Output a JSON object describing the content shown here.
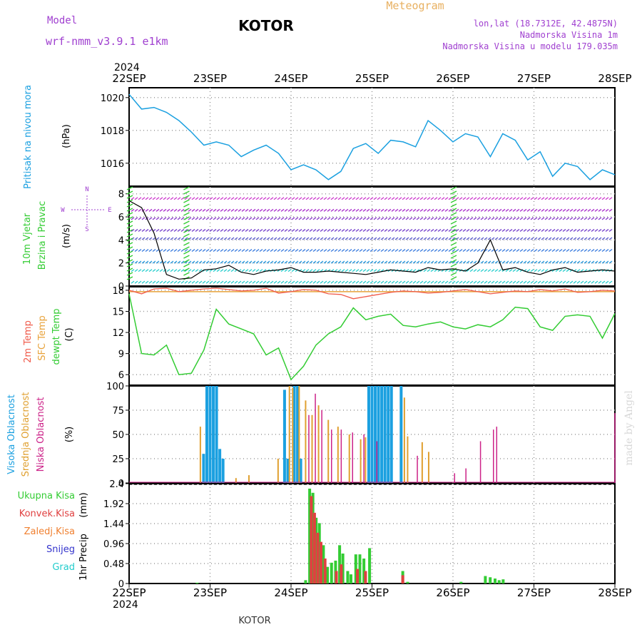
{
  "header": {
    "model_label": "Model",
    "model_name": "wrf-nmm_v3.9.1 e1km",
    "station": "KOTOR",
    "product": "Meteogram",
    "lonlat": "lon,lat (18.7312E, 42.4875N)",
    "elevation": "Nadmorska Visina 1m",
    "model_elevation": "Nadmorska Visina u modelu 179.035m",
    "footer_station": "KOTOR",
    "credit": "made by Angel",
    "year": "2024"
  },
  "colors": {
    "pressure": "#1ba0e0",
    "temp2m": "#f05a4a",
    "sfc_temp": "#e8a23a",
    "dewpoint": "#33cc33",
    "wind_speed": "#000000",
    "high_cloud": "#1ba0e0",
    "mid_cloud": "#e0a030",
    "low_cloud": "#cc2288",
    "total_precip": "#33cc33",
    "conv_precip": "#e04040",
    "frozen_precip": "#f08030",
    "snow": "#3333cc",
    "hail": "#22cccc",
    "purple_text": "#a040d0"
  },
  "chart_data": [
    {
      "type": "line",
      "panel": "pressure",
      "ylabel": "Pritisak na nivou mora",
      "unit": "(hPa)",
      "x_ticks": [
        "22SEP",
        "23SEP",
        "24SEP",
        "25SEP",
        "26SEP",
        "27SEP",
        "28SEP"
      ],
      "ylim": [
        1014.6,
        1020.6
      ],
      "y_ticks": [
        1016,
        1018,
        1020
      ],
      "grid": true,
      "series": [
        {
          "values": [
            1020.2,
            1019.3,
            1019.4,
            1019.1,
            1018.6,
            1017.9,
            1017.1,
            1017.3,
            1017.1,
            1016.4,
            1016.8,
            1017.1,
            1016.6,
            1015.6,
            1015.9,
            1015.6,
            1015.0,
            1015.5,
            1016.9,
            1017.2,
            1016.6,
            1017.4,
            1017.3,
            1017.0,
            1018.6,
            1018.0,
            1017.3,
            1017.8,
            1017.6,
            1016.4,
            1017.8,
            1017.4,
            1016.2,
            1016.7,
            1015.2,
            1016.0,
            1015.8,
            1015.0,
            1015.6,
            1015.3
          ]
        }
      ]
    },
    {
      "type": "line",
      "panel": "wind",
      "ylabel": "10m Vjetar Brzina i Pravac",
      "unit": "(m/s)",
      "compass": [
        "N",
        "E",
        "S",
        "W"
      ],
      "ylim": [
        0,
        8.6
      ],
      "y_ticks": [
        0,
        2,
        4,
        6,
        8
      ],
      "grid": true,
      "series": [
        {
          "name": "speed",
          "values": [
            7.4,
            6.8,
            4.6,
            1.0,
            0.6,
            0.7,
            1.4,
            1.5,
            1.8,
            1.2,
            1.0,
            1.3,
            1.4,
            1.6,
            1.2,
            1.2,
            1.3,
            1.2,
            1.1,
            1.0,
            1.2,
            1.4,
            1.3,
            1.2,
            1.6,
            1.4,
            1.5,
            1.3,
            2.0,
            4.0,
            1.4,
            1.6,
            1.2,
            1.0,
            1.4,
            1.6,
            1.2,
            1.3,
            1.4,
            1.3
          ]
        }
      ]
    },
    {
      "type": "line",
      "panel": "temperature",
      "ylabel": "2m Temp SFC Temp dewpt Temp",
      "legend": [
        "2m Temp",
        "SFC Temp",
        "dewpt Temp"
      ],
      "unit": "(C)",
      "ylim": [
        4.5,
        18.5
      ],
      "y_ticks": [
        6,
        9,
        12,
        15,
        18
      ],
      "grid": true,
      "series": [
        {
          "name": "2m Temp",
          "values": [
            18.0,
            17.5,
            18.2,
            18.3,
            17.8,
            18.0,
            18.2,
            18.3,
            18.1,
            17.9,
            18.0,
            18.3,
            17.6,
            17.8,
            18.1,
            18.0,
            17.5,
            17.4,
            16.8,
            17.1,
            17.4,
            17.7,
            17.9,
            17.8,
            17.6,
            17.7,
            17.9,
            18.1,
            17.8,
            17.5,
            17.7,
            17.9,
            17.8,
            18.1,
            17.9,
            18.2,
            17.7,
            17.8,
            18.0,
            17.9
          ]
        },
        {
          "name": "SFC Temp",
          "values": [
            17.8,
            17.8,
            17.8,
            17.8,
            17.8,
            17.8,
            17.8,
            17.8,
            17.8,
            17.8,
            17.8,
            17.8,
            17.8,
            17.8,
            17.8,
            17.8,
            17.8,
            17.8,
            17.8,
            17.8,
            17.8,
            17.8,
            17.8,
            17.8,
            17.8,
            17.8,
            17.8,
            17.8,
            17.8,
            17.8,
            17.8,
            17.8,
            17.8,
            17.8,
            17.8,
            17.8,
            17.8,
            17.8,
            17.8,
            17.8
          ]
        },
        {
          "name": "dewpt Temp",
          "values": [
            17.5,
            9.0,
            8.8,
            10.2,
            6.0,
            6.2,
            9.5,
            15.3,
            13.2,
            12.5,
            11.8,
            8.8,
            9.8,
            5.3,
            7.2,
            10.2,
            11.8,
            12.8,
            15.5,
            13.8,
            14.3,
            14.6,
            13.0,
            12.8,
            13.2,
            13.5,
            12.8,
            12.5,
            13.1,
            12.8,
            13.8,
            15.6,
            15.4,
            12.8,
            12.3,
            14.3,
            14.5,
            14.3,
            11.2,
            14.7
          ]
        }
      ]
    },
    {
      "type": "bar",
      "panel": "cloud",
      "ylabel": "Visoka Oblacnost Srednja Oblacnost Niska Oblacnost",
      "legend": [
        "Visoka Oblacnost",
        "Srednja Oblacnost",
        "Niska Oblacnost"
      ],
      "unit": "(%)",
      "ylim": [
        0,
        100
      ],
      "y_ticks": [
        0,
        25,
        50,
        75,
        100
      ],
      "grid": true,
      "series": [
        {
          "name": "Visoka Oblacnost",
          "points": [
            [
              22.92,
              30
            ],
            [
              22.96,
              100
            ],
            [
              23.0,
              100
            ],
            [
              23.04,
              100
            ],
            [
              23.08,
              100
            ],
            [
              23.12,
              35
            ],
            [
              23.16,
              25
            ],
            [
              23.92,
              96
            ],
            [
              23.96,
              25
            ],
            [
              24.04,
              100
            ],
            [
              24.08,
              100
            ],
            [
              24.12,
              25
            ],
            [
              24.96,
              100
            ],
            [
              25.0,
              100
            ],
            [
              25.04,
              100
            ],
            [
              25.08,
              100
            ],
            [
              25.12,
              100
            ],
            [
              25.16,
              100
            ],
            [
              25.2,
              100
            ],
            [
              25.24,
              100
            ],
            [
              25.36,
              100
            ]
          ]
        },
        {
          "name": "Srednja Oblacnost",
          "points": [
            [
              22.88,
              58
            ],
            [
              23.32,
              5
            ],
            [
              23.48,
              8
            ],
            [
              23.84,
              25
            ],
            [
              23.98,
              100
            ],
            [
              24.02,
              98
            ],
            [
              24.1,
              100
            ],
            [
              24.18,
              85
            ],
            [
              24.26,
              70
            ],
            [
              24.34,
              80
            ],
            [
              24.46,
              65
            ],
            [
              24.58,
              58
            ],
            [
              24.72,
              50
            ],
            [
              24.86,
              45
            ],
            [
              24.92,
              47
            ],
            [
              25.4,
              88
            ],
            [
              25.44,
              48
            ],
            [
              25.62,
              42
            ],
            [
              25.7,
              32
            ]
          ]
        },
        {
          "name": "Niska Oblacnost",
          "points": [
            [
              24.22,
              70
            ],
            [
              24.3,
              92
            ],
            [
              24.38,
              75
            ],
            [
              24.5,
              55
            ],
            [
              24.62,
              55
            ],
            [
              24.76,
              52
            ],
            [
              24.9,
              50
            ],
            [
              25.06,
              43
            ],
            [
              25.56,
              28
            ],
            [
              26.02,
              10
            ],
            [
              26.16,
              15
            ],
            [
              26.34,
              43
            ],
            [
              26.5,
              55
            ],
            [
              26.54,
              58
            ],
            [
              28.0,
              72
            ]
          ]
        }
      ]
    },
    {
      "type": "bar",
      "panel": "precipitation",
      "ylabel": "1hr Precip",
      "legend": [
        "Ukupna Kisa",
        "Konvek.Kisa",
        "Zaledj.Kisa",
        "Snijeg",
        "Grad"
      ],
      "unit": "(mm)",
      "ylim": [
        0,
        2.4
      ],
      "y_ticks": [
        0,
        0.48,
        0.96,
        1.44,
        1.92,
        2.4
      ],
      "grid": true,
      "series": [
        {
          "name": "Ukupna Kisa",
          "points": [
            [
              22.84,
              0.02
            ],
            [
              24.18,
              0.08
            ],
            [
              24.23,
              2.28
            ],
            [
              24.27,
              2.18
            ],
            [
              24.31,
              1.58
            ],
            [
              24.35,
              1.45
            ],
            [
              24.4,
              0.92
            ],
            [
              24.45,
              0.4
            ],
            [
              24.5,
              0.5
            ],
            [
              24.55,
              0.55
            ],
            [
              24.6,
              0.92
            ],
            [
              24.64,
              0.72
            ],
            [
              24.7,
              0.3
            ],
            [
              24.74,
              0.22
            ],
            [
              24.8,
              0.7
            ],
            [
              24.85,
              0.7
            ],
            [
              24.9,
              0.6
            ],
            [
              24.97,
              0.85
            ],
            [
              25.38,
              0.3
            ],
            [
              25.44,
              0.04
            ],
            [
              26.1,
              0.04
            ],
            [
              26.4,
              0.18
            ],
            [
              26.46,
              0.15
            ],
            [
              26.52,
              0.12
            ],
            [
              26.57,
              0.08
            ],
            [
              26.62,
              0.1
            ]
          ]
        },
        {
          "name": "Konvek.Kisa",
          "points": [
            [
              24.25,
              2.1
            ],
            [
              24.29,
              1.7
            ],
            [
              24.33,
              1.22
            ],
            [
              24.37,
              1.0
            ],
            [
              24.42,
              0.6
            ],
            [
              24.56,
              0.3
            ],
            [
              24.62,
              0.46
            ],
            [
              24.82,
              0.35
            ],
            [
              24.92,
              0.3
            ],
            [
              25.38,
              0.2
            ]
          ]
        }
      ]
    }
  ]
}
